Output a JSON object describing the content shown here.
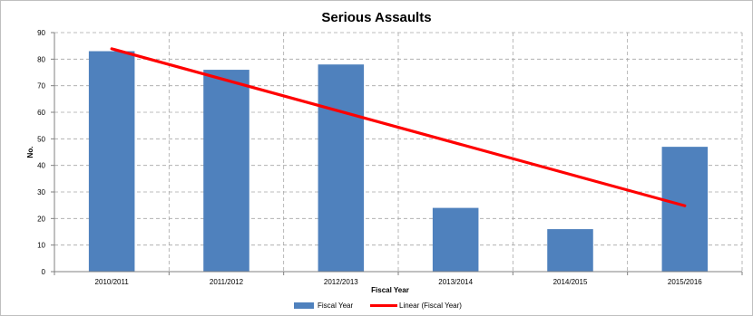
{
  "chart_data": {
    "type": "bar",
    "title": "Serious Assaults",
    "xlabel": "Fiscal Year",
    "ylabel": "No.",
    "ylim": [
      0,
      90
    ],
    "yticks": [
      0,
      10,
      20,
      30,
      40,
      50,
      60,
      70,
      80,
      90
    ],
    "grid": true,
    "categories": [
      "2010/2011",
      "2011/2012",
      "2012/2013",
      "2013/2014",
      "2014/2015",
      "2015/2016"
    ],
    "series": [
      {
        "name": "Fiscal Year",
        "type": "bar",
        "color": "#4f81bd",
        "values": [
          83,
          76,
          78,
          24,
          16,
          47
        ]
      },
      {
        "name": "Linear (Fiscal Year)",
        "type": "line",
        "color": "#ff0000",
        "values": [
          83.9,
          72.1,
          60.3,
          48.4,
          36.6,
          24.8
        ]
      }
    ],
    "legend": {
      "position": "bottom"
    }
  }
}
